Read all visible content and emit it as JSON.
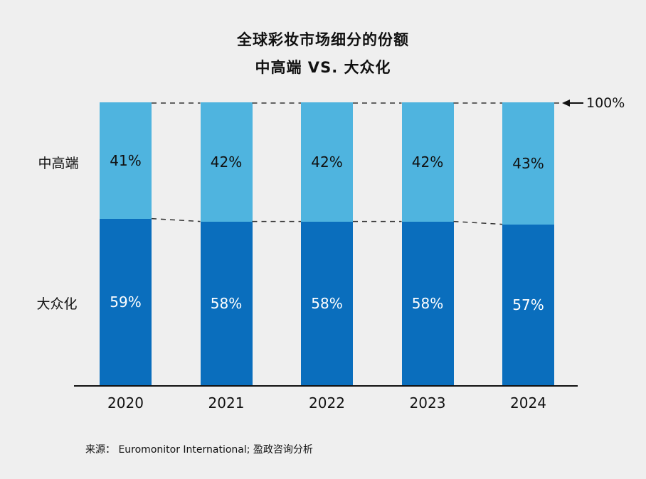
{
  "title": {
    "line1": "全球彩妆市场细分的份额",
    "line2": "中高端 VS. 大众化"
  },
  "annotation": {
    "arrow_label": "100%"
  },
  "source": "来源： Euromonitor International; 盈政咨询分析",
  "colors": {
    "premium": "#4fb4df",
    "mass": "#0a6ebd",
    "background": "#efefef",
    "dashed_line": "#333333",
    "axis": "#111111"
  },
  "chart_data": {
    "type": "bar",
    "subtype": "stacked-percent-bar",
    "title": "全球彩妆市场细分的份额 中高端 VS. 大众化",
    "categories": [
      "2020",
      "2021",
      "2022",
      "2023",
      "2024"
    ],
    "series": [
      {
        "name": "中高端",
        "values": [
          41,
          42,
          42,
          42,
          43
        ],
        "color_key": "premium",
        "label_color": "dark-text"
      },
      {
        "name": "大众化",
        "values": [
          59,
          58,
          58,
          58,
          57
        ],
        "color_key": "mass",
        "label_color": "light-text"
      }
    ],
    "value_suffix": "%",
    "xlabel": "",
    "ylabel": "",
    "ylim": [
      0,
      100
    ],
    "grid": false,
    "legend_position": "left-row-labels",
    "annotations": [
      "100% reference arrow at top right",
      "dashed connectors between stacked segments"
    ]
  }
}
